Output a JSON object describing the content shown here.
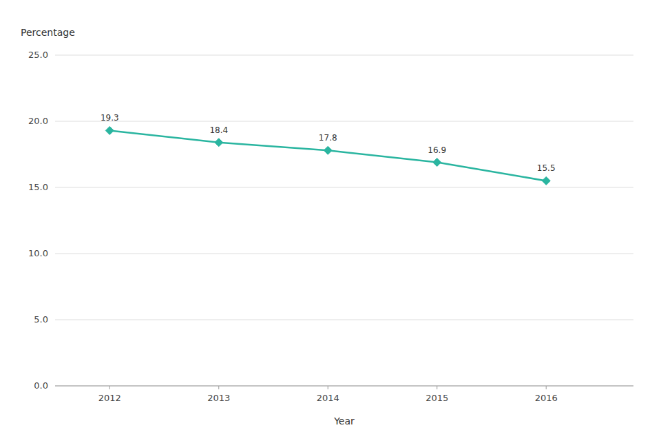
{
  "chart_data": {
    "type": "line",
    "x": [
      2012,
      2013,
      2014,
      2015,
      2016
    ],
    "values": [
      19.3,
      18.4,
      17.8,
      16.9,
      15.5
    ],
    "color": "#2ab5a0",
    "marker": "diamond",
    "xlabel": "Year",
    "ylabel": "Percentage",
    "xlim": [
      2011.5,
      2016.8
    ],
    "xticks": [
      2012,
      2013,
      2014,
      2015,
      2016
    ],
    "ylim": [
      0,
      25.0
    ],
    "yticks": [
      {
        "value": 0.0,
        "label": "0.0"
      },
      {
        "value": 5.0,
        "label": "5.0"
      },
      {
        "value": 10.0,
        "label": "10.0"
      },
      {
        "value": 15.0,
        "label": "15.0"
      },
      {
        "value": 20.0,
        "label": "20.0"
      },
      {
        "value": 25.0,
        "label": "25.0"
      }
    ],
    "grid": true,
    "data_labels": true
  }
}
